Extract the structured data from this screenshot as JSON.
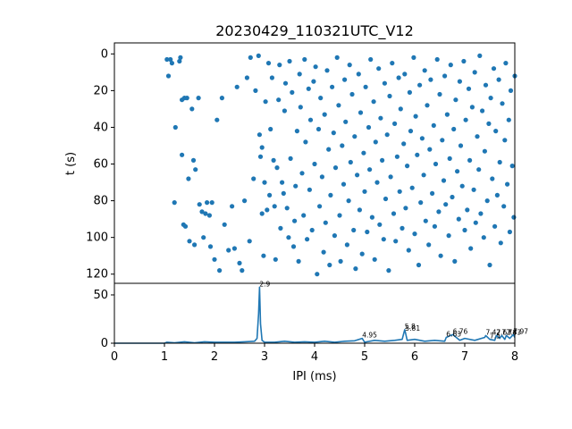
{
  "chart_data": [
    {
      "type": "scatter",
      "title": "20230429_110321UTC_V12",
      "xlabel": "",
      "ylabel": "t (s)",
      "xlim": [
        0,
        8
      ],
      "ylim": [
        125,
        -6
      ],
      "y_inverted": true,
      "y_ticks": [
        "0",
        "20",
        "40",
        "60",
        "80",
        "100",
        "120"
      ],
      "marker_color": "#1f77b4",
      "points": [
        [
          1.05,
          3
        ],
        [
          1.08,
          12
        ],
        [
          1.12,
          3
        ],
        [
          1.15,
          5
        ],
        [
          1.2,
          81
        ],
        [
          1.22,
          40
        ],
        [
          1.3,
          4
        ],
        [
          1.32,
          2
        ],
        [
          1.35,
          25
        ],
        [
          1.35,
          55
        ],
        [
          1.38,
          93
        ],
        [
          1.4,
          24
        ],
        [
          1.42,
          94
        ],
        [
          1.45,
          24
        ],
        [
          1.48,
          68
        ],
        [
          1.5,
          102
        ],
        [
          1.55,
          30
        ],
        [
          1.58,
          58
        ],
        [
          1.6,
          104
        ],
        [
          1.62,
          63
        ],
        [
          1.68,
          24
        ],
        [
          1.7,
          82
        ],
        [
          1.75,
          86
        ],
        [
          1.78,
          100
        ],
        [
          1.82,
          87
        ],
        [
          1.85,
          81
        ],
        [
          1.9,
          88
        ],
        [
          1.92,
          105
        ],
        [
          1.95,
          81
        ],
        [
          2.0,
          112
        ],
        [
          2.05,
          36
        ],
        [
          2.1,
          118
        ],
        [
          2.15,
          24
        ],
        [
          2.2,
          93
        ],
        [
          2.28,
          107
        ],
        [
          2.35,
          83
        ],
        [
          2.4,
          106
        ],
        [
          2.45,
          18
        ],
        [
          2.5,
          114
        ],
        [
          2.55,
          118
        ],
        [
          2.6,
          80
        ],
        [
          2.65,
          13
        ],
        [
          2.7,
          102
        ],
        [
          2.72,
          2
        ],
        [
          2.78,
          68
        ],
        [
          2.82,
          20
        ],
        [
          2.88,
          1
        ],
        [
          2.9,
          44
        ],
        [
          2.92,
          56
        ],
        [
          2.95,
          51
        ],
        [
          2.95,
          87
        ],
        [
          2.98,
          110
        ],
        [
          3.0,
          70
        ],
        [
          3.02,
          26
        ],
        [
          3.05,
          85
        ],
        [
          3.08,
          5
        ],
        [
          3.1,
          77
        ],
        [
          3.12,
          41
        ],
        [
          3.15,
          13
        ],
        [
          3.18,
          58
        ],
        [
          3.2,
          83
        ],
        [
          3.22,
          112
        ],
        [
          3.25,
          62
        ],
        [
          3.28,
          25
        ],
        [
          3.3,
          6
        ],
        [
          3.32,
          95
        ],
        [
          3.35,
          70
        ],
        [
          3.38,
          76
        ],
        [
          3.4,
          31
        ],
        [
          3.42,
          16
        ],
        [
          3.45,
          84
        ],
        [
          3.48,
          100
        ],
        [
          3.5,
          4
        ],
        [
          3.52,
          57
        ],
        [
          3.55,
          21
        ],
        [
          3.58,
          105
        ],
        [
          3.6,
          91
        ],
        [
          3.62,
          72
        ],
        [
          3.65,
          42
        ],
        [
          3.68,
          113
        ],
        [
          3.7,
          11
        ],
        [
          3.72,
          29
        ],
        [
          3.75,
          65
        ],
        [
          3.78,
          88
        ],
        [
          3.8,
          3
        ],
        [
          3.82,
          48
        ],
        [
          3.85,
          101
        ],
        [
          3.88,
          19
        ],
        [
          3.9,
          74
        ],
        [
          3.92,
          36
        ],
        [
          3.95,
          96
        ],
        [
          3.98,
          15
        ],
        [
          4.0,
          60
        ],
        [
          4.02,
          7
        ],
        [
          4.05,
          120
        ],
        [
          4.08,
          41
        ],
        [
          4.1,
          83
        ],
        [
          4.12,
          24
        ],
        [
          4.15,
          67
        ],
        [
          4.18,
          108
        ],
        [
          4.2,
          33
        ],
        [
          4.22,
          92
        ],
        [
          4.25,
          9
        ],
        [
          4.28,
          52
        ],
        [
          4.3,
          115
        ],
        [
          4.32,
          77
        ],
        [
          4.35,
          18
        ],
        [
          4.38,
          43
        ],
        [
          4.4,
          99
        ],
        [
          4.42,
          62
        ],
        [
          4.45,
          2
        ],
        [
          4.48,
          28
        ],
        [
          4.5,
          88
        ],
        [
          4.52,
          113
        ],
        [
          4.55,
          50
        ],
        [
          4.58,
          71
        ],
        [
          4.6,
          14
        ],
        [
          4.62,
          37
        ],
        [
          4.65,
          104
        ],
        [
          4.68,
          80
        ],
        [
          4.7,
          6
        ],
        [
          4.72,
          59
        ],
        [
          4.75,
          22
        ],
        [
          4.78,
          96
        ],
        [
          4.8,
          45
        ],
        [
          4.82,
          117
        ],
        [
          4.85,
          66
        ],
        [
          4.88,
          11
        ],
        [
          4.9,
          85
        ],
        [
          4.92,
          32
        ],
        [
          4.95,
          109
        ],
        [
          4.98,
          54
        ],
        [
          5.0,
          75
        ],
        [
          5.02,
          18
        ],
        [
          5.05,
          97
        ],
        [
          5.08,
          40
        ],
        [
          5.1,
          63
        ],
        [
          5.12,
          3
        ],
        [
          5.15,
          89
        ],
        [
          5.18,
          26
        ],
        [
          5.2,
          112
        ],
        [
          5.22,
          48
        ],
        [
          5.25,
          70
        ],
        [
          5.28,
          8
        ],
        [
          5.3,
          93
        ],
        [
          5.32,
          35
        ],
        [
          5.35,
          58
        ],
        [
          5.38,
          101
        ],
        [
          5.4,
          16
        ],
        [
          5.42,
          79
        ],
        [
          5.45,
          44
        ],
        [
          5.48,
          118
        ],
        [
          5.5,
          23
        ],
        [
          5.52,
          67
        ],
        [
          5.55,
          5
        ],
        [
          5.58,
          87
        ],
        [
          5.6,
          38
        ],
        [
          5.62,
          102
        ],
        [
          5.65,
          56
        ],
        [
          5.68,
          13
        ],
        [
          5.7,
          75
        ],
        [
          5.72,
          30
        ],
        [
          5.75,
          95
        ],
        [
          5.78,
          49
        ],
        [
          5.8,
          11
        ],
        [
          5.82,
          84
        ],
        [
          5.85,
          61
        ],
        [
          5.88,
          107
        ],
        [
          5.9,
          21
        ],
        [
          5.92,
          42
        ],
        [
          5.95,
          73
        ],
        [
          5.98,
          2
        ],
        [
          6.0,
          98
        ],
        [
          6.02,
          34
        ],
        [
          6.05,
          55
        ],
        [
          6.08,
          115
        ],
        [
          6.1,
          17
        ],
        [
          6.12,
          81
        ],
        [
          6.15,
          46
        ],
        [
          6.18,
          66
        ],
        [
          6.2,
          9
        ],
        [
          6.22,
          91
        ],
        [
          6.25,
          28
        ],
        [
          6.28,
          104
        ],
        [
          6.3,
          52
        ],
        [
          6.32,
          14
        ],
        [
          6.35,
          76
        ],
        [
          6.38,
          39
        ],
        [
          6.4,
          94
        ],
        [
          6.42,
          60
        ],
        [
          6.45,
          3
        ],
        [
          6.48,
          86
        ],
        [
          6.5,
          22
        ],
        [
          6.52,
          110
        ],
        [
          6.55,
          47
        ],
        [
          6.58,
          69
        ],
        [
          6.6,
          12
        ],
        [
          6.62,
          82
        ],
        [
          6.65,
          33
        ],
        [
          6.68,
          99
        ],
        [
          6.7,
          57
        ],
        [
          6.72,
          6
        ],
        [
          6.75,
          78
        ],
        [
          6.78,
          41
        ],
        [
          6.8,
          113
        ],
        [
          6.82,
          25
        ],
        [
          6.85,
          64
        ],
        [
          6.88,
          90
        ],
        [
          6.9,
          15
        ],
        [
          6.92,
          50
        ],
        [
          6.95,
          72
        ],
        [
          6.98,
          4
        ],
        [
          7.0,
          96
        ],
        [
          7.02,
          36
        ],
        [
          7.05,
          85
        ],
        [
          7.08,
          19
        ],
        [
          7.1,
          58
        ],
        [
          7.12,
          106
        ],
        [
          7.15,
          29
        ],
        [
          7.18,
          74
        ],
        [
          7.2,
          10
        ],
        [
          7.22,
          92
        ],
        [
          7.25,
          45
        ],
        [
          7.28,
          63
        ],
        [
          7.3,
          1
        ],
        [
          7.32,
          87
        ],
        [
          7.35,
          31
        ],
        [
          7.38,
          100
        ],
        [
          7.4,
          53
        ],
        [
          7.42,
          17
        ],
        [
          7.45,
          80
        ],
        [
          7.48,
          38
        ],
        [
          7.5,
          115
        ],
        [
          7.52,
          24
        ],
        [
          7.55,
          68
        ],
        [
          7.58,
          8
        ],
        [
          7.6,
          94
        ],
        [
          7.62,
          42
        ],
        [
          7.65,
          77
        ],
        [
          7.68,
          14
        ],
        [
          7.7,
          59
        ],
        [
          7.72,
          103
        ],
        [
          7.75,
          27
        ],
        [
          7.78,
          83
        ],
        [
          7.8,
          47
        ],
        [
          7.82,
          5
        ],
        [
          7.85,
          71
        ],
        [
          7.88,
          36
        ],
        [
          7.9,
          97
        ],
        [
          7.92,
          20
        ],
        [
          7.95,
          61
        ],
        [
          7.98,
          89
        ],
        [
          8.0,
          12
        ]
      ]
    },
    {
      "type": "line",
      "title": "",
      "xlabel": "IPI (ms)",
      "ylabel": "",
      "xlim": [
        0,
        8
      ],
      "ylim": [
        0,
        62
      ],
      "x_ticks": [
        "0",
        "1",
        "2",
        "3",
        "4",
        "5",
        "6",
        "7",
        "8"
      ],
      "y_ticks": [
        "0",
        "50"
      ],
      "line_color": "#1f77b4",
      "x": [
        0,
        0.5,
        1.0,
        1.05,
        1.2,
        1.4,
        1.6,
        1.8,
        2.0,
        2.2,
        2.4,
        2.6,
        2.8,
        2.85,
        2.88,
        2.9,
        2.92,
        2.95,
        3.0,
        3.2,
        3.4,
        3.6,
        3.8,
        4.0,
        4.2,
        4.4,
        4.6,
        4.8,
        4.95,
        5.0,
        5.2,
        5.4,
        5.6,
        5.75,
        5.8,
        5.81,
        5.85,
        6.0,
        6.2,
        6.4,
        6.6,
        6.63,
        6.76,
        6.9,
        7.0,
        7.2,
        7.4,
        7.42,
        7.5,
        7.6,
        7.63,
        7.7,
        7.74,
        7.8,
        7.83,
        7.9,
        7.97,
        8.0
      ],
      "y": [
        0,
        0,
        0,
        1,
        0.5,
        1.5,
        0.5,
        1.5,
        1,
        1,
        1,
        1.5,
        2,
        5,
        30,
        58,
        20,
        3,
        1,
        1,
        2,
        1,
        1.5,
        1,
        2,
        1,
        2,
        2.5,
        5,
        1,
        3,
        2,
        3,
        4,
        14,
        12,
        3,
        4,
        2,
        3,
        2,
        6,
        9,
        3,
        5,
        3,
        6,
        8,
        4,
        3,
        8,
        5,
        8,
        4,
        8,
        5,
        9,
        6
      ],
      "annotations": [
        "2.9",
        "4.95",
        "5.8",
        "5.81",
        "6.63",
        "6.76",
        "7.42",
        "7.5",
        "7.63",
        "7.74",
        "7.83",
        "7.97"
      ]
    }
  ]
}
